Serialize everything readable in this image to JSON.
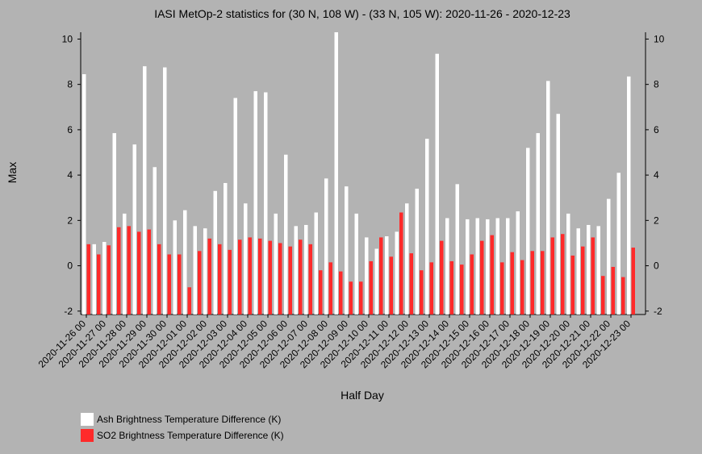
{
  "chart_data": {
    "type": "bar",
    "title": "IASI MetOp-2 statistics for (30 N, 108 W) - (33 N, 105 W): 2020-11-26 - 2020-12-23",
    "x_label": "Half Day",
    "y_label": "Max",
    "categories": [
      "2020-11-26 00",
      null,
      "2020-11-27 00",
      null,
      "2020-11-28 00",
      null,
      "2020-11-29 00",
      null,
      "2020-11-30 00",
      null,
      "2020-12-01 00",
      null,
      "2020-12-02 00",
      null,
      "2020-12-03 00",
      null,
      "2020-12-04 00",
      null,
      "2020-12-05 00",
      null,
      "2020-12-06 00",
      null,
      "2020-12-07 00",
      null,
      "2020-12-08 00",
      null,
      "2020-12-09 00",
      null,
      "2020-12-10 00",
      null,
      "2020-12-11 00",
      null,
      "2020-12-12 00",
      null,
      "2020-12-13 00",
      null,
      "2020-12-14 00",
      null,
      "2020-12-15 00",
      null,
      "2020-12-16 00",
      null,
      "2020-12-17 00",
      null,
      "2020-12-18 00",
      null,
      "2020-12-19 00",
      null,
      "2020-12-20 00",
      null,
      "2020-12-21 00",
      null,
      "2020-12-22 00",
      null,
      "2020-12-23 00"
    ],
    "series": [
      {
        "name": "Ash Brightness Temperature Difference (K)",
        "color": "#ffffff",
        "values": [
          8.45,
          0.95,
          1.05,
          5.85,
          2.3,
          5.35,
          8.8,
          4.35,
          8.75,
          2.0,
          2.45,
          1.75,
          1.65,
          3.3,
          3.65,
          7.4,
          2.75,
          7.7,
          7.65,
          2.3,
          4.9,
          1.75,
          1.8,
          2.35,
          3.85,
          10.3,
          3.5,
          2.3,
          1.25,
          0.75,
          1.3,
          1.5,
          2.75,
          3.4,
          5.6,
          9.35,
          2.1,
          3.6,
          2.05,
          2.1,
          2.05,
          2.1,
          2.1,
          2.4,
          5.2,
          5.85,
          8.15,
          6.7,
          2.3,
          1.65,
          1.8,
          1.75,
          2.95,
          4.1,
          8.35
        ]
      },
      {
        "name": "SO2 Brightness Temperature Difference (K)",
        "color": "#ff2a2a",
        "values": [
          0.95,
          0.5,
          0.9,
          1.7,
          1.75,
          1.5,
          1.6,
          0.95,
          0.5,
          0.5,
          -0.95,
          0.65,
          1.2,
          0.95,
          0.7,
          1.15,
          1.25,
          1.2,
          1.1,
          1.0,
          0.85,
          1.15,
          0.95,
          -0.2,
          0.15,
          -0.25,
          -0.7,
          -0.7,
          0.2,
          1.25,
          0.4,
          2.35,
          0.55,
          -0.2,
          0.15,
          1.1,
          0.2,
          0.05,
          0.5,
          1.1,
          1.35,
          0.15,
          0.6,
          0.25,
          0.65,
          0.65,
          1.25,
          1.4,
          0.45,
          0.85,
          1.25,
          -0.45,
          -0.05,
          -0.5,
          0.8
        ]
      }
    ],
    "ylim": [
      -2.15,
      10.3
    ],
    "yticks": [
      -2,
      0,
      2,
      4,
      6,
      8,
      10
    ],
    "right_axis_ticks": true
  }
}
